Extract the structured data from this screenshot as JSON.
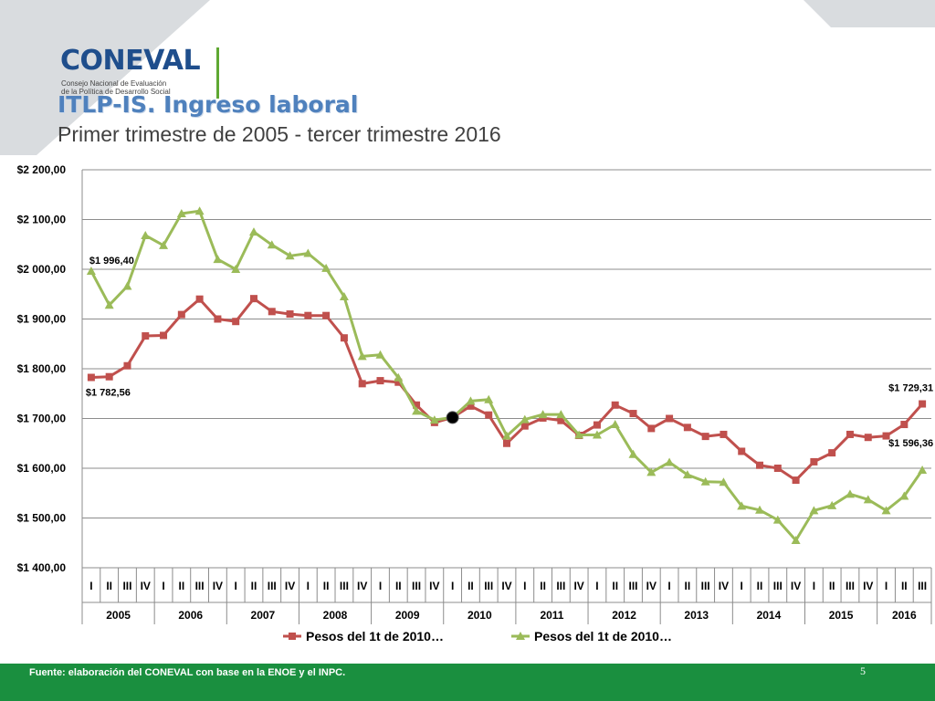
{
  "header": {
    "logo_text": "CONEVAL",
    "logo_subtitle_1": "Consejo Nacional de Evaluación",
    "logo_subtitle_2": "de la Política de Desarrollo Social",
    "title": "ITLP-IS. Ingreso laboral",
    "subtitle": "Primer trimestre de 2005 - tercer trimestre 2016"
  },
  "footer": {
    "source": "Fuente: elaboración del CONEVAL con base en la ENOE y el INPC.",
    "page_number": "5"
  },
  "colors": {
    "series1": "#c0504d",
    "series2": "#9bbb59",
    "footer": "#1a8f3f",
    "title": "#4f81bd",
    "deco": "#d9dcdf"
  },
  "chart_data": {
    "type": "line",
    "title": "",
    "xlabel": "",
    "ylabel": "",
    "ylim": [
      1400,
      2200
    ],
    "yticks": [
      "$1 400,00",
      "$1 500,00",
      "$1 600,00",
      "$1 700,00",
      "$1 800,00",
      "$1 900,00",
      "$2 000,00",
      "$2 100,00",
      "$2 200,00"
    ],
    "grid": true,
    "legend": "bottom",
    "quarters": [
      "I",
      "II",
      "III",
      "IV",
      "I",
      "II",
      "III",
      "IV",
      "I",
      "II",
      "III",
      "IV",
      "I",
      "II",
      "III",
      "IV",
      "I",
      "II",
      "III",
      "IV",
      "I",
      "II",
      "III",
      "IV",
      "I",
      "II",
      "III",
      "IV",
      "I",
      "II",
      "III",
      "IV",
      "I",
      "II",
      "III",
      "IV",
      "I",
      "II",
      "III",
      "IV",
      "I",
      "II",
      "III",
      "IV",
      "I",
      "II",
      "III"
    ],
    "years": [
      {
        "label": "2005",
        "n": 4
      },
      {
        "label": "2006",
        "n": 4
      },
      {
        "label": "2007",
        "n": 4
      },
      {
        "label": "2008",
        "n": 4
      },
      {
        "label": "2009",
        "n": 4
      },
      {
        "label": "2010",
        "n": 4
      },
      {
        "label": "2011",
        "n": 4
      },
      {
        "label": "2012",
        "n": 4
      },
      {
        "label": "2013",
        "n": 4
      },
      {
        "label": "2014",
        "n": 4
      },
      {
        "label": "2015",
        "n": 4
      },
      {
        "label": "2016",
        "n": 3
      }
    ],
    "series": [
      {
        "name": "Pesos del 1t  de 2010…",
        "marker": "square",
        "values": [
          1782.56,
          1784,
          1806,
          1866,
          1867,
          1909,
          1940,
          1900,
          1895,
          1941,
          1915,
          1910,
          1907,
          1907,
          1862,
          1770,
          1776,
          1773,
          1727,
          1692,
          1702,
          1725,
          1707,
          1650,
          1685,
          1701,
          1696,
          1666,
          1687,
          1727,
          1710,
          1680,
          1700,
          1682,
          1664,
          1668,
          1634,
          1606,
          1600,
          1576,
          1613,
          1631,
          1668,
          1662,
          1665,
          1688,
          1729.31
        ]
      },
      {
        "name": "Pesos del 1t de 2010…",
        "marker": "triangle",
        "values": [
          1996.4,
          1928,
          1966,
          2068,
          2048,
          2112,
          2117,
          2020,
          2000,
          2075,
          2049,
          2027,
          2032,
          2002,
          1945,
          1825,
          1828,
          1782,
          1715,
          1697,
          1702,
          1735,
          1738,
          1665,
          1698,
          1708,
          1708,
          1667,
          1667,
          1688,
          1628,
          1592,
          1612,
          1587,
          1573,
          1572,
          1524,
          1516,
          1496,
          1455,
          1515,
          1525,
          1548,
          1537,
          1515,
          1544,
          1596.36
        ]
      }
    ],
    "data_labels": [
      {
        "series": 1,
        "index": 0,
        "text": "$1 996,40"
      },
      {
        "series": 0,
        "index": 0,
        "text": "$1 782,56"
      },
      {
        "series": 0,
        "index": 46,
        "text": "$1 729,31"
      },
      {
        "series": 1,
        "index": 46,
        "text": "$1 596,36"
      }
    ]
  }
}
